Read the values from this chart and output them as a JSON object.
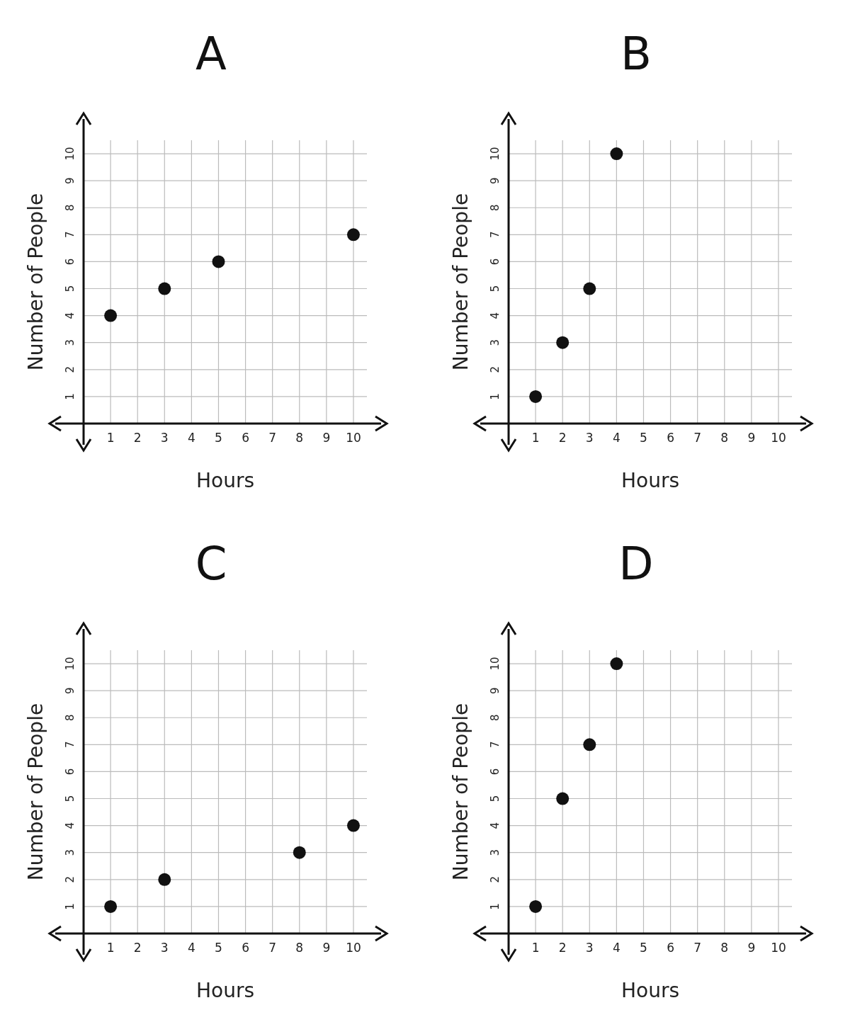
{
  "chart_data": [
    {
      "type": "scatter",
      "title": "A",
      "xlabel": "Hours",
      "ylabel": "Number of People",
      "x": [
        1,
        3,
        5,
        10
      ],
      "values": [
        4,
        5,
        6,
        7
      ],
      "color": "#111111",
      "marker": "circle",
      "xlim": [
        0,
        10.5
      ],
      "ylim": [
        0,
        10.5
      ],
      "xticks": [
        1,
        2,
        3,
        4,
        5,
        6,
        7,
        8,
        9,
        10
      ],
      "yticks": [
        1,
        2,
        3,
        4,
        5,
        6,
        7,
        8,
        9,
        10
      ],
      "grid": true
    },
    {
      "type": "scatter",
      "title": "B",
      "xlabel": "Hours",
      "ylabel": "Number of People",
      "x": [
        1,
        2,
        3,
        4
      ],
      "values": [
        1,
        3,
        5,
        10
      ],
      "color": "#111111",
      "marker": "circle",
      "xlim": [
        0,
        10.5
      ],
      "ylim": [
        0,
        10.5
      ],
      "xticks": [
        1,
        2,
        3,
        4,
        5,
        6,
        7,
        8,
        9,
        10
      ],
      "yticks": [
        1,
        2,
        3,
        4,
        5,
        6,
        7,
        8,
        9,
        10
      ],
      "grid": true
    },
    {
      "type": "scatter",
      "title": "C",
      "xlabel": "Hours",
      "ylabel": "Number of People",
      "x": [
        1,
        3,
        8,
        10
      ],
      "values": [
        1,
        2,
        3,
        4
      ],
      "color": "#111111",
      "marker": "circle",
      "xlim": [
        0,
        10.5
      ],
      "ylim": [
        0,
        10.5
      ],
      "xticks": [
        1,
        2,
        3,
        4,
        5,
        6,
        7,
        8,
        9,
        10
      ],
      "yticks": [
        1,
        2,
        3,
        4,
        5,
        6,
        7,
        8,
        9,
        10
      ],
      "grid": true
    },
    {
      "type": "scatter",
      "title": "D",
      "xlabel": "Hours",
      "ylabel": "Number of People",
      "x": [
        1,
        2,
        3,
        4
      ],
      "values": [
        1,
        5,
        7,
        10
      ],
      "color": "#111111",
      "marker": "circle",
      "xlim": [
        0,
        10.5
      ],
      "ylim": [
        0,
        10.5
      ],
      "xticks": [
        1,
        2,
        3,
        4,
        5,
        6,
        7,
        8,
        9,
        10
      ],
      "yticks": [
        1,
        2,
        3,
        4,
        5,
        6,
        7,
        8,
        9,
        10
      ],
      "grid": true
    }
  ]
}
